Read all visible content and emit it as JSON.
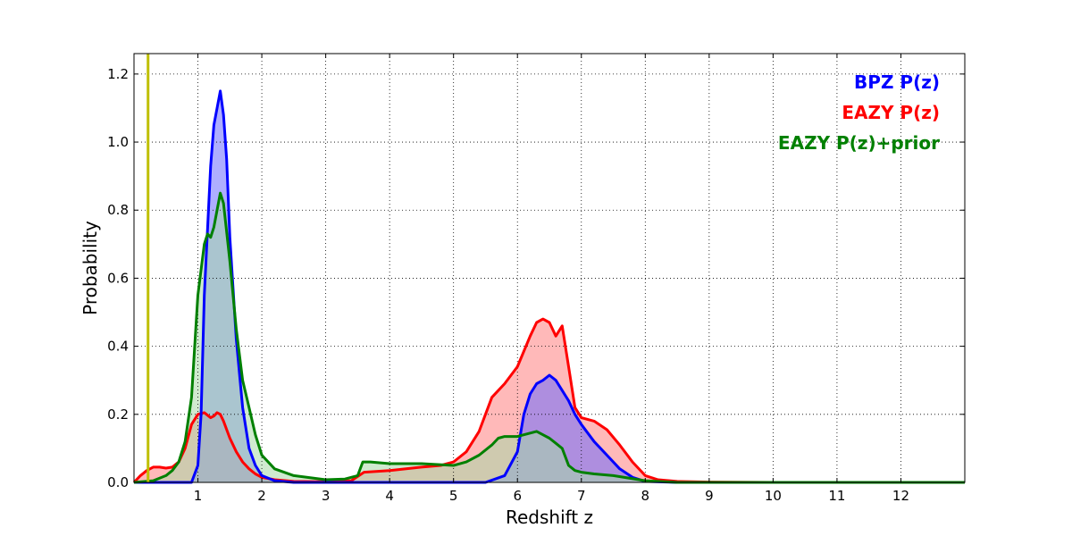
{
  "chart_data": {
    "type": "area",
    "xlabel": "Redshift z",
    "ylabel": "Probability",
    "xlim": [
      0,
      13
    ],
    "ylim": [
      0,
      1.26
    ],
    "xticks": [
      1,
      2,
      3,
      4,
      5,
      6,
      7,
      8,
      9,
      10,
      11,
      12
    ],
    "yticks": [
      0.0,
      0.2,
      0.4,
      0.6,
      0.8,
      1.0,
      1.2
    ],
    "grid": true,
    "legend_position": "top-right",
    "vline": {
      "x": 0.22,
      "color": "#bfbf00"
    },
    "series": [
      {
        "name": "EAZY P(z)",
        "color": "#ff0000",
        "fill": "#ff8080",
        "x": [
          0,
          0.1,
          0.2,
          0.3,
          0.4,
          0.5,
          0.6,
          0.7,
          0.8,
          0.9,
          1.0,
          1.1,
          1.2,
          1.25,
          1.3,
          1.35,
          1.4,
          1.5,
          1.6,
          1.7,
          1.8,
          1.9,
          2.0,
          2.2,
          2.5,
          3.0,
          3.4,
          3.6,
          4.0,
          4.5,
          4.8,
          5.0,
          5.2,
          5.4,
          5.6,
          5.8,
          6.0,
          6.2,
          6.3,
          6.4,
          6.5,
          6.6,
          6.7,
          6.8,
          6.9,
          7.0,
          7.2,
          7.4,
          7.6,
          7.8,
          8.0,
          8.2,
          8.5,
          9.0,
          10.0,
          11.0,
          12.0,
          13.0
        ],
        "y": [
          0.0,
          0.02,
          0.035,
          0.045,
          0.045,
          0.042,
          0.045,
          0.06,
          0.1,
          0.17,
          0.2,
          0.205,
          0.19,
          0.195,
          0.205,
          0.2,
          0.18,
          0.13,
          0.09,
          0.06,
          0.04,
          0.025,
          0.015,
          0.008,
          0.003,
          0.002,
          0.005,
          0.03,
          0.035,
          0.045,
          0.05,
          0.06,
          0.09,
          0.15,
          0.25,
          0.29,
          0.34,
          0.43,
          0.47,
          0.48,
          0.47,
          0.43,
          0.46,
          0.34,
          0.22,
          0.19,
          0.18,
          0.155,
          0.11,
          0.06,
          0.02,
          0.008,
          0.003,
          0.001,
          0.0,
          0.0,
          0.0,
          0.0
        ]
      },
      {
        "name": "BPZ P(z)",
        "color": "#0000ff",
        "fill": "#6b6bff",
        "x": [
          0,
          0.7,
          0.9,
          1.0,
          1.05,
          1.1,
          1.2,
          1.25,
          1.3,
          1.35,
          1.4,
          1.45,
          1.5,
          1.6,
          1.7,
          1.8,
          1.9,
          2.0,
          2.2,
          2.5,
          3.0,
          4.0,
          5.0,
          5.5,
          5.8,
          6.0,
          6.1,
          6.2,
          6.3,
          6.4,
          6.5,
          6.6,
          6.7,
          6.8,
          6.9,
          7.0,
          7.2,
          7.4,
          7.6,
          7.8,
          8.0,
          8.5,
          13.0
        ],
        "y": [
          0.0,
          0.0,
          0.0,
          0.05,
          0.2,
          0.55,
          0.93,
          1.05,
          1.1,
          1.15,
          1.08,
          0.95,
          0.72,
          0.42,
          0.22,
          0.1,
          0.05,
          0.02,
          0.005,
          0.0,
          0.0,
          0.0,
          0.0,
          0.0,
          0.02,
          0.09,
          0.2,
          0.26,
          0.29,
          0.3,
          0.315,
          0.3,
          0.27,
          0.24,
          0.2,
          0.17,
          0.12,
          0.08,
          0.04,
          0.015,
          0.003,
          0.0,
          0.0
        ]
      },
      {
        "name": "EAZY P(z)+prior",
        "color": "#008000",
        "fill": "#a8d8a8",
        "x": [
          0,
          0.3,
          0.5,
          0.6,
          0.7,
          0.8,
          0.9,
          1.0,
          1.1,
          1.15,
          1.2,
          1.25,
          1.3,
          1.35,
          1.4,
          1.5,
          1.6,
          1.7,
          1.8,
          1.9,
          2.0,
          2.2,
          2.5,
          3.0,
          3.3,
          3.5,
          3.58,
          3.7,
          4.0,
          4.5,
          5.0,
          5.2,
          5.4,
          5.6,
          5.7,
          5.8,
          6.0,
          6.2,
          6.3,
          6.4,
          6.5,
          6.6,
          6.7,
          6.8,
          6.9,
          7.0,
          7.2,
          7.5,
          8.0,
          8.5,
          9.0,
          13.0
        ],
        "y": [
          0.0,
          0.005,
          0.02,
          0.035,
          0.06,
          0.12,
          0.25,
          0.55,
          0.7,
          0.73,
          0.72,
          0.75,
          0.8,
          0.85,
          0.82,
          0.65,
          0.45,
          0.3,
          0.22,
          0.14,
          0.08,
          0.04,
          0.02,
          0.008,
          0.01,
          0.02,
          0.06,
          0.06,
          0.055,
          0.055,
          0.05,
          0.06,
          0.08,
          0.11,
          0.13,
          0.135,
          0.135,
          0.145,
          0.15,
          0.14,
          0.13,
          0.115,
          0.1,
          0.05,
          0.035,
          0.03,
          0.025,
          0.02,
          0.005,
          0.0,
          0.0,
          0.0
        ]
      }
    ]
  }
}
